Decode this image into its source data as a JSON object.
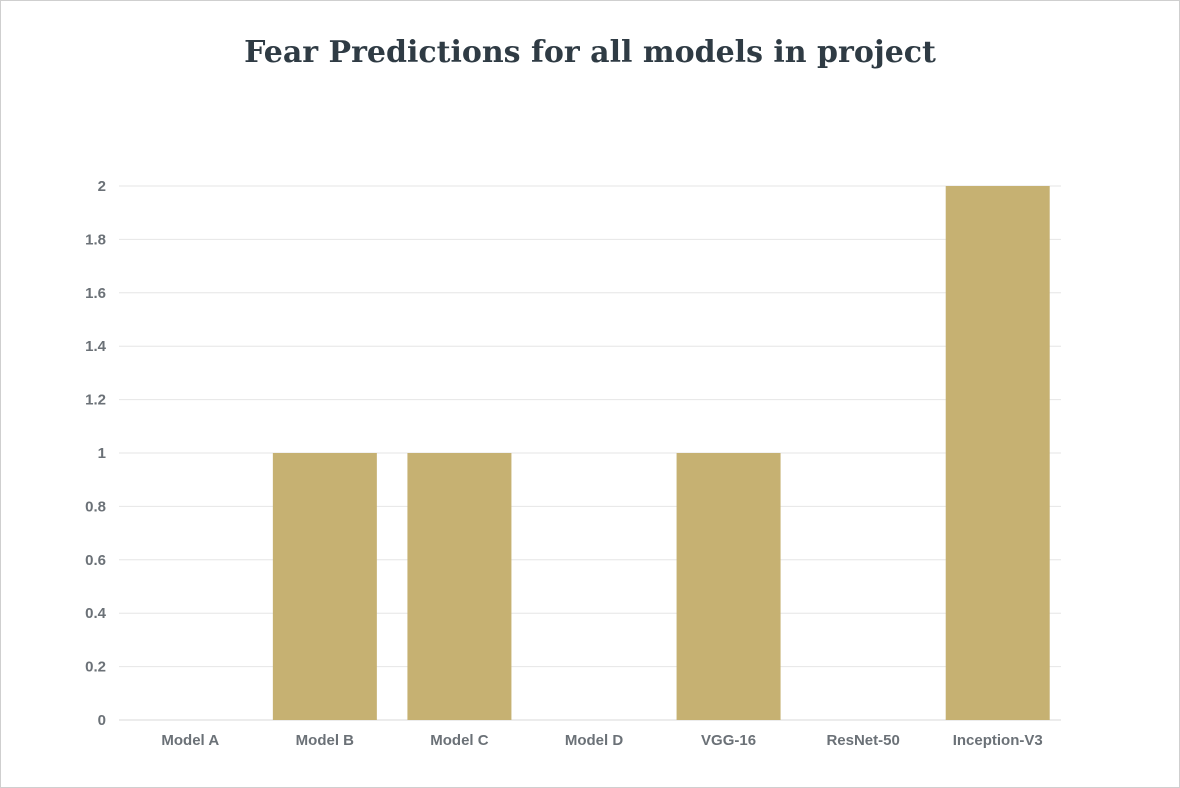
{
  "chart_data": {
    "type": "bar",
    "title": "Fear Predictions for all models in project",
    "xlabel": "",
    "ylabel": "",
    "categories": [
      "Model A",
      "Model B",
      "Model C",
      "Model D",
      "VGG-16",
      "ResNet-50",
      "Inception-V3"
    ],
    "values": [
      0,
      1,
      1,
      0,
      1,
      0,
      2
    ],
    "ylim": [
      0,
      2
    ],
    "yticks": [
      "0",
      "0.2",
      "0.4",
      "0.6",
      "0.8",
      "1",
      "1.2",
      "1.4",
      "1.6",
      "1.8",
      "2"
    ],
    "grid": true,
    "legend": "none",
    "bar_color": "#c6b172",
    "grid_color": "#e6e6e6",
    "axis_color": "#d8d8d8"
  }
}
